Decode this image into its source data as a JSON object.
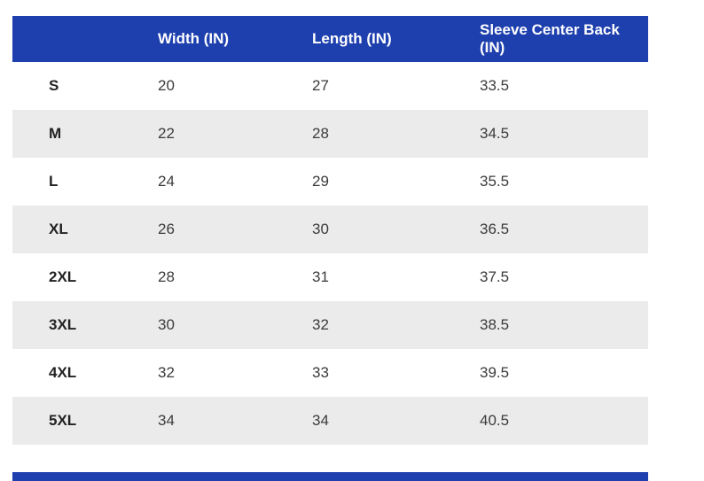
{
  "chart_data": {
    "type": "table",
    "corner_label": "",
    "columns": [
      "Width (IN)",
      "Length (IN)",
      "Sleeve Center Back (IN)"
    ],
    "rows": [
      {
        "size": "S",
        "width": "20",
        "length": "27",
        "sleeve_center_back": "33.5"
      },
      {
        "size": "M",
        "width": "22",
        "length": "28",
        "sleeve_center_back": "34.5"
      },
      {
        "size": "L",
        "width": "24",
        "length": "29",
        "sleeve_center_back": "35.5"
      },
      {
        "size": "XL",
        "width": "26",
        "length": "30",
        "sleeve_center_back": "36.5"
      },
      {
        "size": "2XL",
        "width": "28",
        "length": "31",
        "sleeve_center_back": "37.5"
      },
      {
        "size": "3XL",
        "width": "30",
        "length": "32",
        "sleeve_center_back": "38.5"
      },
      {
        "size": "4XL",
        "width": "32",
        "length": "33",
        "sleeve_center_back": "39.5"
      },
      {
        "size": "5XL",
        "width": "34",
        "length": "34",
        "sleeve_center_back": "40.5"
      }
    ]
  },
  "colors": {
    "header_bg": "#1e3fae",
    "alt_row_bg": "#ebebeb",
    "body_text": "#3b3b3b",
    "label_text": "#222222"
  }
}
